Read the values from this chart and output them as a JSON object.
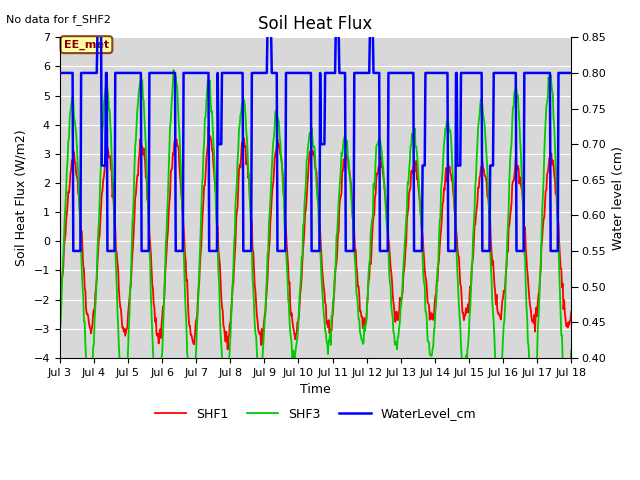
{
  "title": "Soil Heat Flux",
  "xlabel": "Time",
  "ylabel_left": "Soil Heat Flux (W/m2)",
  "ylabel_right": "Water level (cm)",
  "ylim_left": [
    -4,
    7
  ],
  "ylim_right": [
    0.4,
    0.85
  ],
  "no_data_text": "No data for f_SHF2",
  "station_label": "EE_met",
  "fig_bg_color": "#ffffff",
  "plot_bg_color": "#d8d8d8",
  "shf1_color": "#ff0000",
  "shf3_color": "#00cc00",
  "water_color": "#0000ff",
  "grid_color": "#ffffff",
  "legend_labels": [
    "SHF1",
    "SHF3",
    "WaterLevel_cm"
  ],
  "xtick_labels": [
    "Jul 3",
    "Jul 4",
    "Jul 5",
    "Jul 6",
    "Jul 7",
    "Jul 8",
    "Jul 9",
    "Jul 10",
    "Jul 11",
    "Jul 12",
    "Jul 13",
    "Jul 14",
    "Jul 15",
    "Jul 16",
    "Jul 17",
    "Jul 18"
  ],
  "yticks_left": [
    -4,
    -3,
    -2,
    -1,
    0,
    1,
    2,
    3,
    4,
    5,
    6,
    7
  ],
  "yticks_right": [
    0.4,
    0.45,
    0.5,
    0.55,
    0.6,
    0.65,
    0.7,
    0.75,
    0.8,
    0.85
  ],
  "title_fontsize": 12,
  "label_fontsize": 9,
  "tick_fontsize": 8,
  "legend_fontsize": 9,
  "linewidth_shf": 1.3,
  "linewidth_water": 1.8
}
